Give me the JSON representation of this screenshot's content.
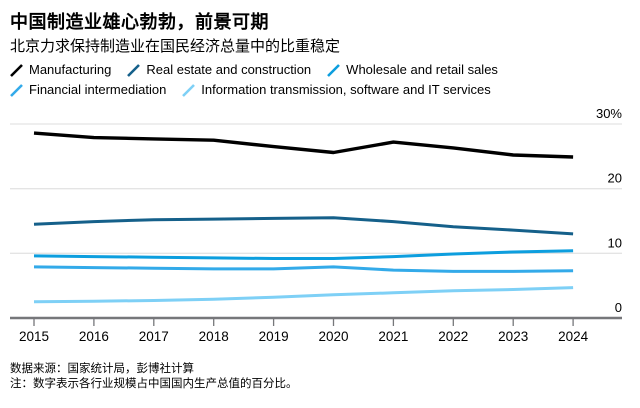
{
  "header": {
    "title": "中国制造业雄心勃勃，前景可期",
    "subtitle": "北京力求保持制造业在国民经济总量中的比重稳定"
  },
  "chart_data": {
    "type": "line",
    "x": [
      2015,
      2016,
      2017,
      2018,
      2019,
      2020,
      2021,
      2022,
      2023,
      2024
    ],
    "series": [
      {
        "name": "Manufacturing",
        "color": "#000000",
        "values": [
          28.6,
          27.9,
          27.7,
          27.5,
          26.5,
          25.6,
          27.2,
          26.3,
          25.2,
          24.9
        ]
      },
      {
        "name": "Real estate and construction",
        "color": "#15608a",
        "values": [
          14.5,
          14.9,
          15.2,
          15.3,
          15.4,
          15.5,
          14.9,
          14.1,
          13.6,
          13.0
        ]
      },
      {
        "name": "Wholesale and retail sales",
        "color": "#0d9ede",
        "values": [
          9.6,
          9.5,
          9.4,
          9.3,
          9.2,
          9.2,
          9.5,
          9.9,
          10.2,
          10.4
        ]
      },
      {
        "name": "Financial intermediation",
        "color": "#33aae9",
        "values": [
          7.9,
          7.8,
          7.7,
          7.6,
          7.6,
          7.9,
          7.4,
          7.2,
          7.2,
          7.3
        ]
      },
      {
        "name": "Information transmission, software and IT services",
        "color": "#7ed0f6",
        "values": [
          2.5,
          2.6,
          2.7,
          2.9,
          3.2,
          3.6,
          3.9,
          4.2,
          4.4,
          4.7
        ]
      }
    ],
    "y_ticks": [
      {
        "value": 30,
        "label": "30%"
      },
      {
        "value": 20,
        "label": "20"
      },
      {
        "value": 10,
        "label": "10"
      },
      {
        "value": 0,
        "label": "0"
      }
    ],
    "ylim": [
      0,
      31
    ],
    "grid": "horizontal",
    "legend_position": "top",
    "title": "中国制造业雄心勃勃，前景可期",
    "xlabel": "",
    "ylabel": ""
  },
  "footer": {
    "source": "数据来源：国家统计局，彭博社计算",
    "note": "注：数字表示各行业规模占中国国内生产总值的百分比。"
  }
}
